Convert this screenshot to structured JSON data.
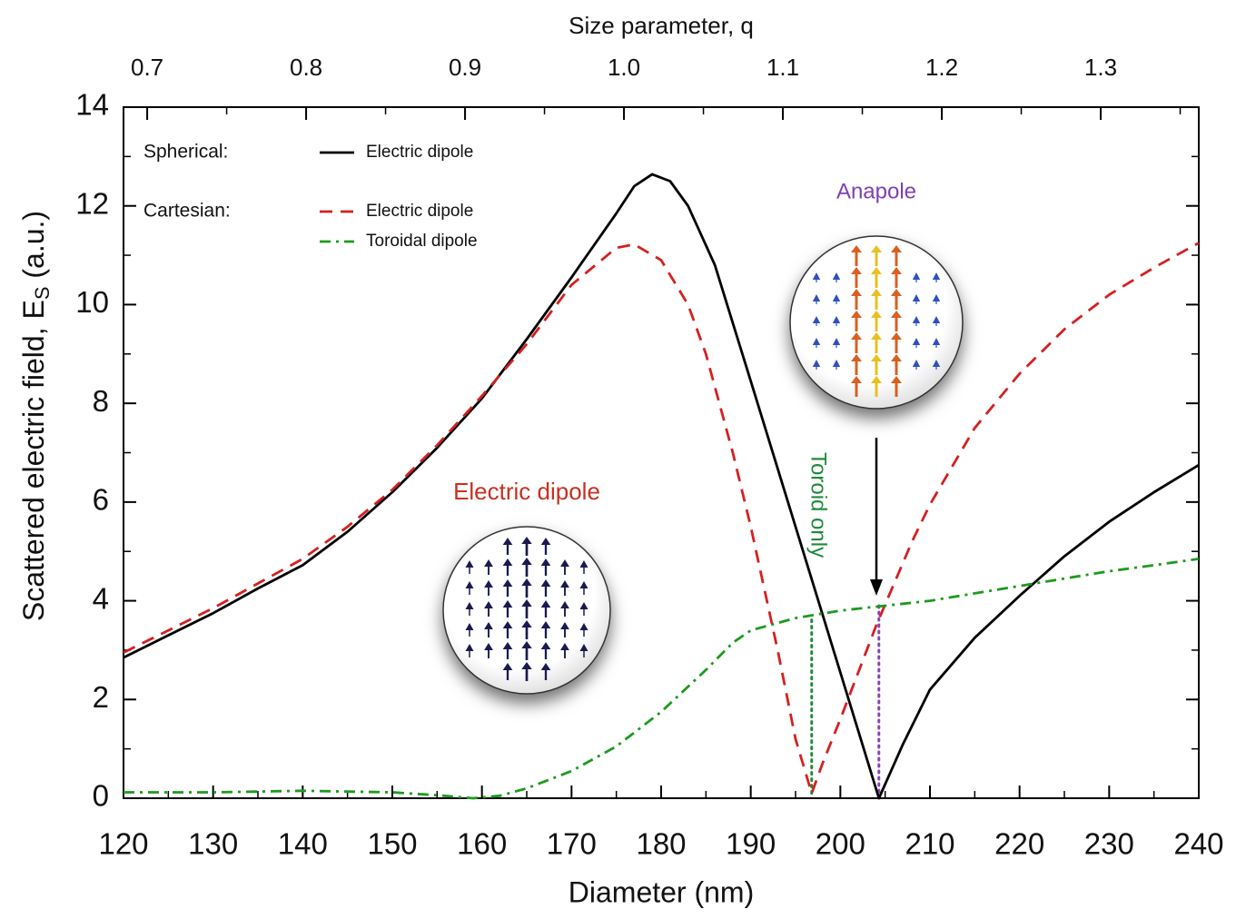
{
  "chart_data": {
    "type": "line",
    "x_label": "Diameter (nm)",
    "x2_label": "Size parameter, q",
    "y_label": "Scattered electric field, E",
    "y_label_sub": "S",
    "y_label_unit": "(a.u.)",
    "xlim": [
      120,
      240
    ],
    "xticks": [
      120,
      130,
      140,
      150,
      160,
      170,
      180,
      190,
      200,
      210,
      220,
      230,
      240
    ],
    "xticks_minor": [
      125,
      135,
      145,
      155,
      165,
      175,
      185,
      195,
      205,
      215,
      225,
      235
    ],
    "x2lim": [
      0.6851,
      1.3617
    ],
    "x2ticks": [
      0.7,
      0.8,
      0.9,
      {
        "value": 1,
        "label": "1.0"
      },
      1.1,
      1.2,
      1.3
    ],
    "x2ticks_minor": [
      0.75,
      0.85,
      0.95,
      1.05,
      1.15,
      1.25,
      1.35
    ],
    "ylim": [
      0,
      14
    ],
    "yticks": [
      0,
      2,
      4,
      6,
      8,
      10,
      12,
      14
    ],
    "yticks_minor": [
      1,
      3,
      5,
      7,
      9,
      11,
      13
    ],
    "series_groups": [
      {
        "name": "Spherical:",
        "series": [
          {
            "name": "Electric dipole",
            "color": "#000000",
            "dash": "solid",
            "x": [
              120,
              125,
              130,
              135,
              140,
              145,
              150,
              155,
              160,
              165,
              170,
              175,
              177,
              179,
              181,
              183,
              186,
              190,
              195,
              200,
              204.3,
              207,
              210,
              215,
              220,
              225,
              230,
              235,
              240
            ],
            "values": [
              2.85,
              3.3,
              3.75,
              4.25,
              4.72,
              5.4,
              6.2,
              7.1,
              8.1,
              9.3,
              10.55,
              11.85,
              12.4,
              12.64,
              12.5,
              12.0,
              10.8,
              8.45,
              5.5,
              2.55,
              0,
              1.1,
              2.2,
              3.25,
              4.1,
              4.9,
              5.6,
              6.2,
              6.75
            ]
          }
        ]
      },
      {
        "name": "Cartesian:",
        "series": [
          {
            "name": "Electric dipole",
            "color": "#d42020",
            "dash": "dashed",
            "x": [
              120,
              125,
              130,
              135,
              140,
              145,
              150,
              155,
              160,
              165,
              170,
              175,
              177,
              180,
              183,
              185,
              188,
              190,
              193,
              195,
              196.8,
              198,
              200,
              204,
              208,
              210,
              215,
              220,
              225,
              230,
              235,
              240
            ],
            "values": [
              2.95,
              3.4,
              3.85,
              4.35,
              4.85,
              5.5,
              6.25,
              7.15,
              8.15,
              9.2,
              10.4,
              11.15,
              11.22,
              10.9,
              10.0,
              9.0,
              7.0,
              5.5,
              3.0,
              1.2,
              0.1,
              0.7,
              1.6,
              3.5,
              5.2,
              5.95,
              7.5,
              8.6,
              9.5,
              10.2,
              10.75,
              11.25
            ]
          },
          {
            "name": "Toroidal dipole",
            "color": "#1e9a1e",
            "dash": "dashdot",
            "x": [
              120,
              130,
              140,
              150,
              155,
              159,
              162,
              165,
              170,
              175,
              180,
              185,
              188,
              190,
              195,
              200,
              205,
              210,
              215,
              220,
              225,
              230,
              235,
              240
            ],
            "values": [
              0.12,
              0.12,
              0.15,
              0.12,
              0.06,
              0,
              0.05,
              0.2,
              0.55,
              1.05,
              1.75,
              2.6,
              3.15,
              3.4,
              3.65,
              3.8,
              3.9,
              4.0,
              4.15,
              4.3,
              4.45,
              4.6,
              4.72,
              4.85
            ]
          }
        ]
      }
    ],
    "vlines": [
      {
        "x": 196.8,
        "y": [
          0.1,
          3.7
        ],
        "color": "#1e8a3a"
      },
      {
        "x": 204.3,
        "y": [
          0,
          3.9
        ],
        "color": "#8844bb"
      }
    ],
    "annotations": {
      "anapole": "Anapole",
      "electric_dipole": "Electric dipole",
      "toroid_only": "Toroid only"
    }
  }
}
